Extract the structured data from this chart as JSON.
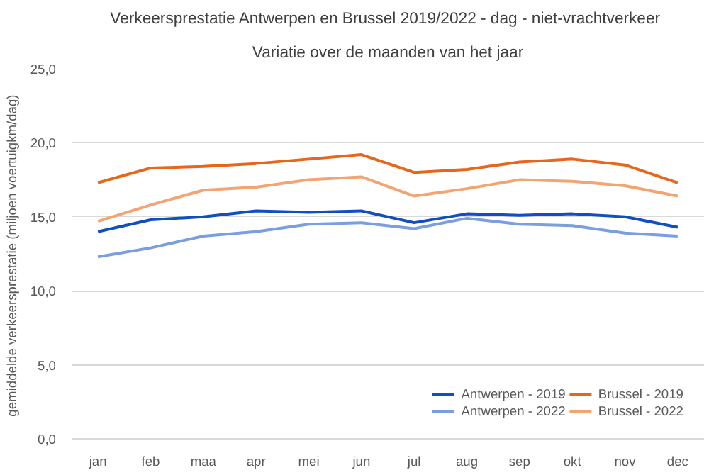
{
  "chart_data": {
    "type": "line",
    "title": "Verkeersprestatie Antwerpen en Brussel 2019/2022 -  dag - niet-vrachtverkeer",
    "subtitle": "Variatie over de maanden van het jaar",
    "ylabel": "gemiddelde verkeersprestatie  (miljoen voertuigkm/dag)",
    "categories": [
      "jan",
      "feb",
      "maa",
      "apr",
      "mei",
      "jun",
      "jul",
      "aug",
      "sep",
      "okt",
      "nov",
      "dec"
    ],
    "series": [
      {
        "name": "Antwerpen - 2019",
        "color": "#0f4fbf",
        "values": [
          14.0,
          14.8,
          15.0,
          15.4,
          15.3,
          15.4,
          14.6,
          15.2,
          15.1,
          15.2,
          15.0,
          14.3
        ]
      },
      {
        "name": "Antwerpen - 2022",
        "color": "#7a9ee0",
        "values": [
          12.3,
          12.9,
          13.7,
          14.0,
          14.5,
          14.6,
          14.2,
          14.9,
          14.5,
          14.4,
          13.9,
          13.7
        ]
      },
      {
        "name": "Brussel - 2019",
        "color": "#e8661a",
        "values": [
          17.3,
          18.3,
          18.4,
          18.6,
          18.9,
          19.2,
          18.0,
          18.2,
          18.7,
          18.9,
          18.5,
          17.3
        ]
      },
      {
        "name": "Brussel - 2022",
        "color": "#f4a470",
        "values": [
          14.7,
          15.8,
          16.8,
          17.0,
          17.5,
          17.7,
          16.4,
          16.9,
          17.5,
          17.4,
          17.1,
          16.4
        ]
      }
    ],
    "ylim": [
      0,
      25
    ],
    "yticks": [
      {
        "value": 0,
        "label": "0,0"
      },
      {
        "value": 5,
        "label": "5,0"
      },
      {
        "value": 10,
        "label": "10,0"
      },
      {
        "value": 15,
        "label": "15,0"
      },
      {
        "value": 20,
        "label": "20,0"
      },
      {
        "value": 25,
        "label": "25,0"
      }
    ],
    "grid": "y",
    "legend": "bottom right",
    "line_style": "solid"
  }
}
